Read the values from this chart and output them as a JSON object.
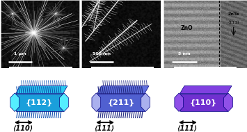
{
  "top_panels": [
    {
      "label": "1 μm",
      "type": "sem_low"
    },
    {
      "label": "500 nm",
      "type": "sem_high"
    },
    {
      "label": "5 nm",
      "type": "tem"
    }
  ],
  "bottom_panels": [
    {
      "label": "{112}",
      "direction": "⟨110⟩",
      "color_body": "#1a9fdb",
      "color_top": "#29c8f0",
      "color_dark": "#0d5fa0",
      "color_end": "#55eeff",
      "color_branches": "#1050b0",
      "type": "branched"
    },
    {
      "label": "{211}",
      "direction": "⟨111⟩",
      "color_body": "#5060d0",
      "color_top": "#6070e0",
      "color_dark": "#202880",
      "color_end": "#aab0ee",
      "color_branches": "#202880",
      "type": "branched"
    },
    {
      "label": "{110}",
      "direction": "⟨111⟩",
      "color_body": "#7030d0",
      "color_top": "#8040e0",
      "color_dark": "#300870",
      "color_end": "#9050e8",
      "color_branches": "#1a237e",
      "type": "plain"
    }
  ],
  "bg_color": "#ffffff"
}
